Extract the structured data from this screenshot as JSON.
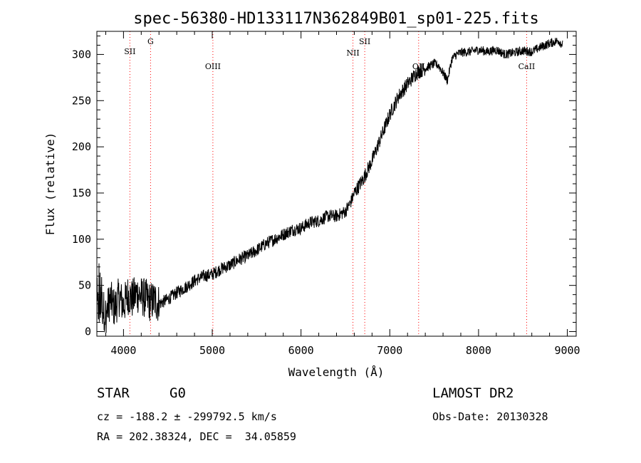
{
  "chart_data": {
    "type": "line",
    "title": "spec-56380-HD133117N362849B01_sp01-225.fits",
    "xlabel": "Wavelength (Å)",
    "ylabel": "Flux (relative)",
    "xlim": [
      3700,
      9100
    ],
    "ylim": [
      -5,
      325
    ],
    "xticks": [
      4000,
      5000,
      6000,
      7000,
      8000,
      9000
    ],
    "yticks": [
      0,
      50,
      100,
      150,
      200,
      250,
      300
    ],
    "grid": false,
    "series": [
      {
        "x": [
          3700,
          3750,
          3800,
          3850,
          3900,
          3950,
          4000,
          4050,
          4100,
          4150,
          4200,
          4250,
          4300,
          4350,
          4400,
          4500,
          4600,
          4700,
          4800,
          4900,
          5000,
          5100,
          5200,
          5300,
          5400,
          5500,
          5600,
          5700,
          5800,
          5900,
          6000,
          6100,
          6200,
          6300,
          6400,
          6500,
          6560,
          6600,
          6700,
          6800,
          6900,
          7000,
          7100,
          7200,
          7300,
          7400,
          7500,
          7550,
          7600,
          7650,
          7700,
          7750,
          7800,
          7900,
          8000,
          8100,
          8200,
          8300,
          8400,
          8500,
          8600,
          8700,
          8800,
          8900,
          8950
        ],
        "y": [
          25,
          30,
          18,
          35,
          25,
          38,
          28,
          40,
          35,
          42,
          38,
          36,
          32,
          34,
          30,
          35,
          42,
          48,
          55,
          60,
          62,
          68,
          72,
          78,
          82,
          88,
          95,
          100,
          105,
          110,
          112,
          118,
          120,
          125,
          125,
          130,
          140,
          150,
          165,
          185,
          210,
          235,
          255,
          268,
          280,
          285,
          290,
          288,
          280,
          272,
          295,
          300,
          302,
          303,
          305,
          303,
          305,
          300,
          302,
          304,
          303,
          308,
          312,
          315,
          310
        ]
      }
    ],
    "lines": [
      {
        "label": "SII",
        "x": 4072
      },
      {
        "label": "G",
        "x": 4305
      },
      {
        "label": "OIII",
        "x": 5007
      },
      {
        "label": "NII",
        "x": 6585
      },
      {
        "label": "SII",
        "x": 6718
      },
      {
        "label": "OII",
        "x": 7325
      },
      {
        "label": "CaII",
        "x": 8542
      }
    ],
    "line_color": "#ff0000",
    "series_color": "#000000"
  },
  "info": {
    "class": "STAR",
    "subclass": "G0",
    "survey": "LAMOST DR2",
    "cz": "cz = -188.2 ± -299792.5 km/s",
    "obs_date": "Obs-Date: 20130328",
    "coords": "RA = 202.38324, DEC =  34.05859"
  }
}
